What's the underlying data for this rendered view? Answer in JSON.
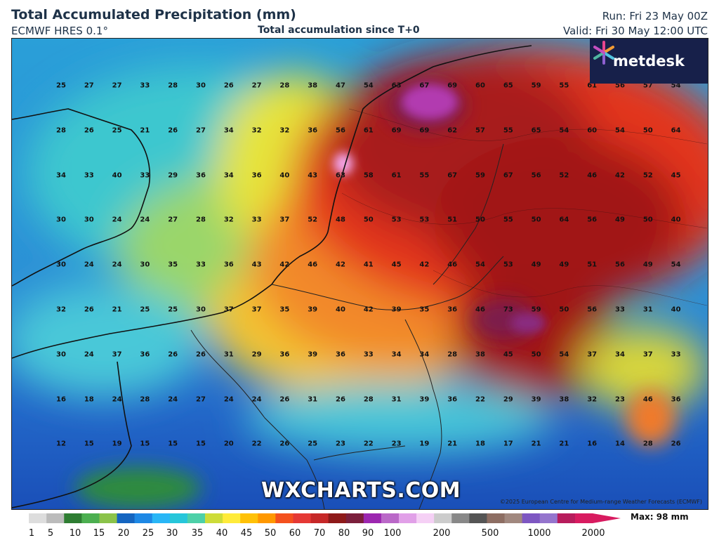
{
  "header": {
    "title": "Total Accumulated Precipitation (mm)",
    "model": "ECMWF HRES 0.1°",
    "subtitle": "Total accumulation since T+0",
    "run": "Run: Fri 23 May 00Z",
    "valid": "Valid: Fri 30 May 12:00 UTC"
  },
  "brand": {
    "name": "metdesk",
    "logo_icon": "metdesk-star-icon"
  },
  "watermark": "WXCHARTS.COM",
  "copyright": "©2025 European Centre for Medium-range Weather Forecasts (ECMWF)",
  "legend": {
    "ticks": [
      "1",
      "5",
      "10",
      "15",
      "20",
      "25",
      "30",
      "35",
      "40",
      "45",
      "50",
      "60",
      "70",
      "80",
      "90",
      "100",
      "200",
      "500",
      "1000",
      "2000"
    ],
    "max_label": "Max: 98 mm",
    "colors": [
      "#ffffff",
      "#dddddd",
      "#bbbbbb",
      "#2e7d32",
      "#4caf50",
      "#8bc34a",
      "#1565c0",
      "#1e88e5",
      "#29b6f6",
      "#26c6da",
      "#4dd0a8",
      "#cddc39",
      "#ffeb3b",
      "#ffc107",
      "#ff9800",
      "#f4511e",
      "#e53935",
      "#c62828",
      "#8e1a1a",
      "#7b1f3c",
      "#9c27b0",
      "#ba68c8",
      "#e1a0e8",
      "#f5d0f5",
      "#cccccc",
      "#888888",
      "#555555",
      "#8d6e63",
      "#a1887f",
      "#7e57c2",
      "#9575cd",
      "#b71c5c",
      "#d81b60"
    ]
  },
  "grid": {
    "rows": [
      [
        "25",
        "27",
        "27",
        "33",
        "28",
        "30",
        "26",
        "27",
        "28",
        "38",
        "47",
        "54",
        "63",
        "67",
        "69",
        "60",
        "65",
        "59",
        "55",
        "61",
        "56",
        "57",
        "54"
      ],
      [
        "28",
        "26",
        "25",
        "21",
        "26",
        "27",
        "34",
        "32",
        "32",
        "36",
        "56",
        "61",
        "69",
        "69",
        "62",
        "57",
        "55",
        "65",
        "54",
        "60",
        "54",
        "50",
        "64"
      ],
      [
        "34",
        "33",
        "40",
        "33",
        "29",
        "36",
        "34",
        "36",
        "40",
        "43",
        "63",
        "58",
        "61",
        "55",
        "67",
        "59",
        "67",
        "56",
        "52",
        "46",
        "42",
        "52",
        "45"
      ],
      [
        "30",
        "30",
        "24",
        "24",
        "27",
        "28",
        "32",
        "33",
        "37",
        "52",
        "48",
        "50",
        "53",
        "53",
        "51",
        "50",
        "55",
        "50",
        "64",
        "56",
        "49",
        "50",
        "40"
      ],
      [
        "30",
        "24",
        "24",
        "30",
        "35",
        "33",
        "36",
        "43",
        "42",
        "46",
        "42",
        "41",
        "45",
        "42",
        "46",
        "54",
        "53",
        "49",
        "49",
        "51",
        "56",
        "49",
        "54"
      ],
      [
        "32",
        "26",
        "21",
        "25",
        "25",
        "30",
        "37",
        "37",
        "35",
        "39",
        "40",
        "42",
        "39",
        "35",
        "36",
        "46",
        "73",
        "59",
        "50",
        "56",
        "33",
        "31",
        "40"
      ],
      [
        "30",
        "24",
        "37",
        "36",
        "26",
        "26",
        "31",
        "29",
        "36",
        "39",
        "36",
        "33",
        "34",
        "34",
        "28",
        "38",
        "45",
        "50",
        "54",
        "37",
        "34",
        "37",
        "33"
      ],
      [
        "16",
        "18",
        "24",
        "28",
        "24",
        "27",
        "24",
        "24",
        "26",
        "31",
        "26",
        "28",
        "31",
        "39",
        "36",
        "22",
        "29",
        "39",
        "38",
        "32",
        "23",
        "46",
        "36"
      ],
      [
        "12",
        "15",
        "19",
        "15",
        "15",
        "15",
        "20",
        "22",
        "26",
        "25",
        "23",
        "22",
        "23",
        "19",
        "21",
        "18",
        "17",
        "21",
        "21",
        "16",
        "14",
        "28",
        "26"
      ]
    ]
  }
}
